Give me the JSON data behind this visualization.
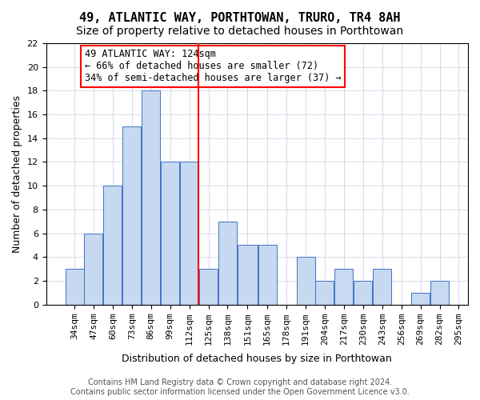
{
  "title": "49, ATLANTIC WAY, PORTHTOWAN, TRURO, TR4 8AH",
  "subtitle": "Size of property relative to detached houses in Porthtowan",
  "xlabel": "Distribution of detached houses by size in Porthtowan",
  "ylabel": "Number of detached properties",
  "bar_values": [
    3,
    6,
    10,
    15,
    18,
    12,
    12,
    3,
    7,
    5,
    5,
    0,
    4,
    2,
    3,
    2,
    3,
    0,
    1,
    2
  ],
  "bin_labels": [
    "34sqm",
    "47sqm",
    "60sqm",
    "73sqm",
    "86sqm",
    "99sqm",
    "112sqm",
    "125sqm",
    "138sqm",
    "151sqm",
    "165sqm",
    "178sqm",
    "191sqm",
    "204sqm",
    "217sqm",
    "230sqm",
    "243sqm",
    "256sqm",
    "269sqm",
    "282sqm",
    "295sqm"
  ],
  "bar_color": "#c6d9f0",
  "bar_edge_color": "#4472c4",
  "vline_x": 124,
  "bin_edges": [
    34,
    47,
    60,
    73,
    86,
    99,
    112,
    125,
    138,
    151,
    165,
    178,
    191,
    204,
    217,
    230,
    243,
    256,
    269,
    282,
    295
  ],
  "annotation_text": "49 ATLANTIC WAY: 124sqm\n← 66% of detached houses are smaller (72)\n34% of semi-detached houses are larger (37) →",
  "annotation_box_color": "#ff0000",
  "ylim": [
    0,
    22
  ],
  "yticks": [
    0,
    2,
    4,
    6,
    8,
    10,
    12,
    14,
    16,
    18,
    20,
    22
  ],
  "footer_text": "Contains HM Land Registry data © Crown copyright and database right 2024.\nContains public sector information licensed under the Open Government Licence v3.0.",
  "title_fontsize": 11,
  "subtitle_fontsize": 10,
  "xlabel_fontsize": 9,
  "ylabel_fontsize": 9,
  "tick_fontsize": 8,
  "annotation_fontsize": 8.5,
  "footer_fontsize": 7
}
